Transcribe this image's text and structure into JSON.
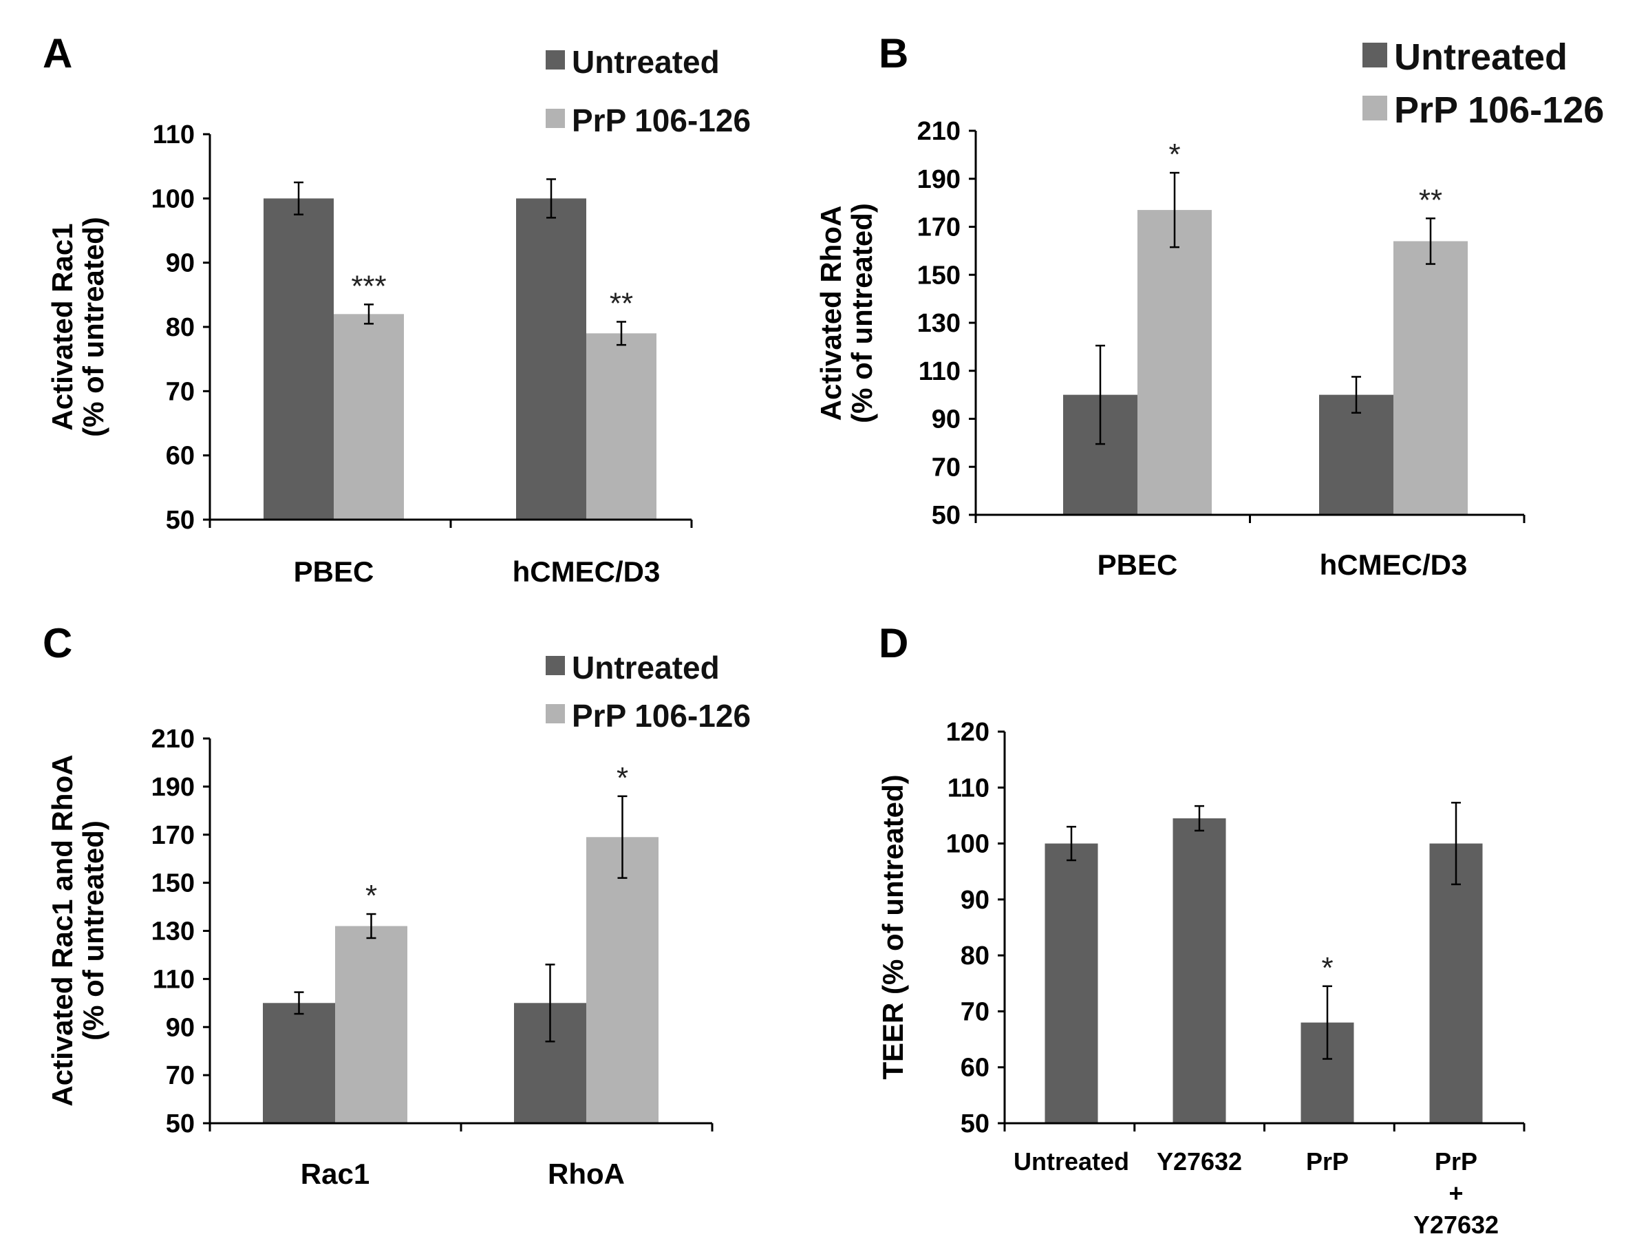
{
  "colors": {
    "untreated": "#5f5f5f",
    "treated": "#b3b3b3",
    "axis": "#000000"
  },
  "chart_data": [
    {
      "panel": "A",
      "type": "bar",
      "categories": [
        "PBEC",
        "hCMEC/D3"
      ],
      "series": [
        {
          "name": "Untreated",
          "values": [
            100,
            100
          ],
          "errors": [
            2.5,
            3
          ],
          "sig": [
            "",
            ""
          ]
        },
        {
          "name": "PrP 106-126",
          "values": [
            82,
            79
          ],
          "errors": [
            1.5,
            1.8
          ],
          "sig": [
            "***",
            "**"
          ]
        }
      ],
      "ylabel": [
        "Activated Rac1",
        "(% of untreated)"
      ],
      "ylim": [
        50,
        110
      ],
      "yticks": [
        50,
        60,
        70,
        80,
        90,
        100,
        110
      ],
      "legend": "top-right"
    },
    {
      "panel": "B",
      "type": "bar",
      "categories": [
        "PBEC",
        "hCMEC/D3"
      ],
      "series": [
        {
          "name": "Untreated",
          "values": [
            100,
            100
          ],
          "errors": [
            20.5,
            7.5
          ],
          "sig": [
            "",
            ""
          ]
        },
        {
          "name": "PrP 106-126",
          "values": [
            177,
            164
          ],
          "errors": [
            15.5,
            9.5
          ],
          "sig": [
            "*",
            "**"
          ]
        }
      ],
      "ylabel": [
        "Activated RhoA",
        "(% of untreated)"
      ],
      "ylim": [
        50,
        210
      ],
      "yticks": [
        50,
        70,
        90,
        110,
        130,
        150,
        170,
        190,
        210
      ],
      "legend": "top-right"
    },
    {
      "panel": "C",
      "type": "bar",
      "categories": [
        "Rac1",
        "RhoA"
      ],
      "series": [
        {
          "name": "Untreated",
          "values": [
            100,
            100
          ],
          "errors": [
            4.5,
            16
          ],
          "sig": [
            "",
            ""
          ]
        },
        {
          "name": "PrP 106-126",
          "values": [
            132,
            169
          ],
          "errors": [
            5,
            17
          ],
          "sig": [
            "*",
            "*"
          ]
        }
      ],
      "ylabel": [
        "Activated Rac1 and RhoA",
        "(% of untreated)"
      ],
      "ylim": [
        50,
        210
      ],
      "yticks": [
        50,
        70,
        90,
        110,
        130,
        150,
        170,
        190,
        210
      ],
      "legend": "top-right"
    },
    {
      "panel": "D",
      "type": "bar",
      "categories": [
        [
          "Untreated"
        ],
        [
          "Y27632"
        ],
        [
          "PrP"
        ],
        [
          "PrP",
          "+",
          "Y27632"
        ]
      ],
      "series": [
        {
          "name": "",
          "values": [
            100,
            104.5,
            68,
            100
          ],
          "errors": [
            3,
            2.2,
            6.5,
            7.3
          ],
          "sig": [
            "",
            "",
            "*",
            ""
          ]
        }
      ],
      "ylabel": [
        "TEER (% of untreated)"
      ],
      "ylim": [
        50,
        120
      ],
      "yticks": [
        50,
        60,
        70,
        80,
        90,
        100,
        110,
        120
      ],
      "legend": "none"
    }
  ]
}
